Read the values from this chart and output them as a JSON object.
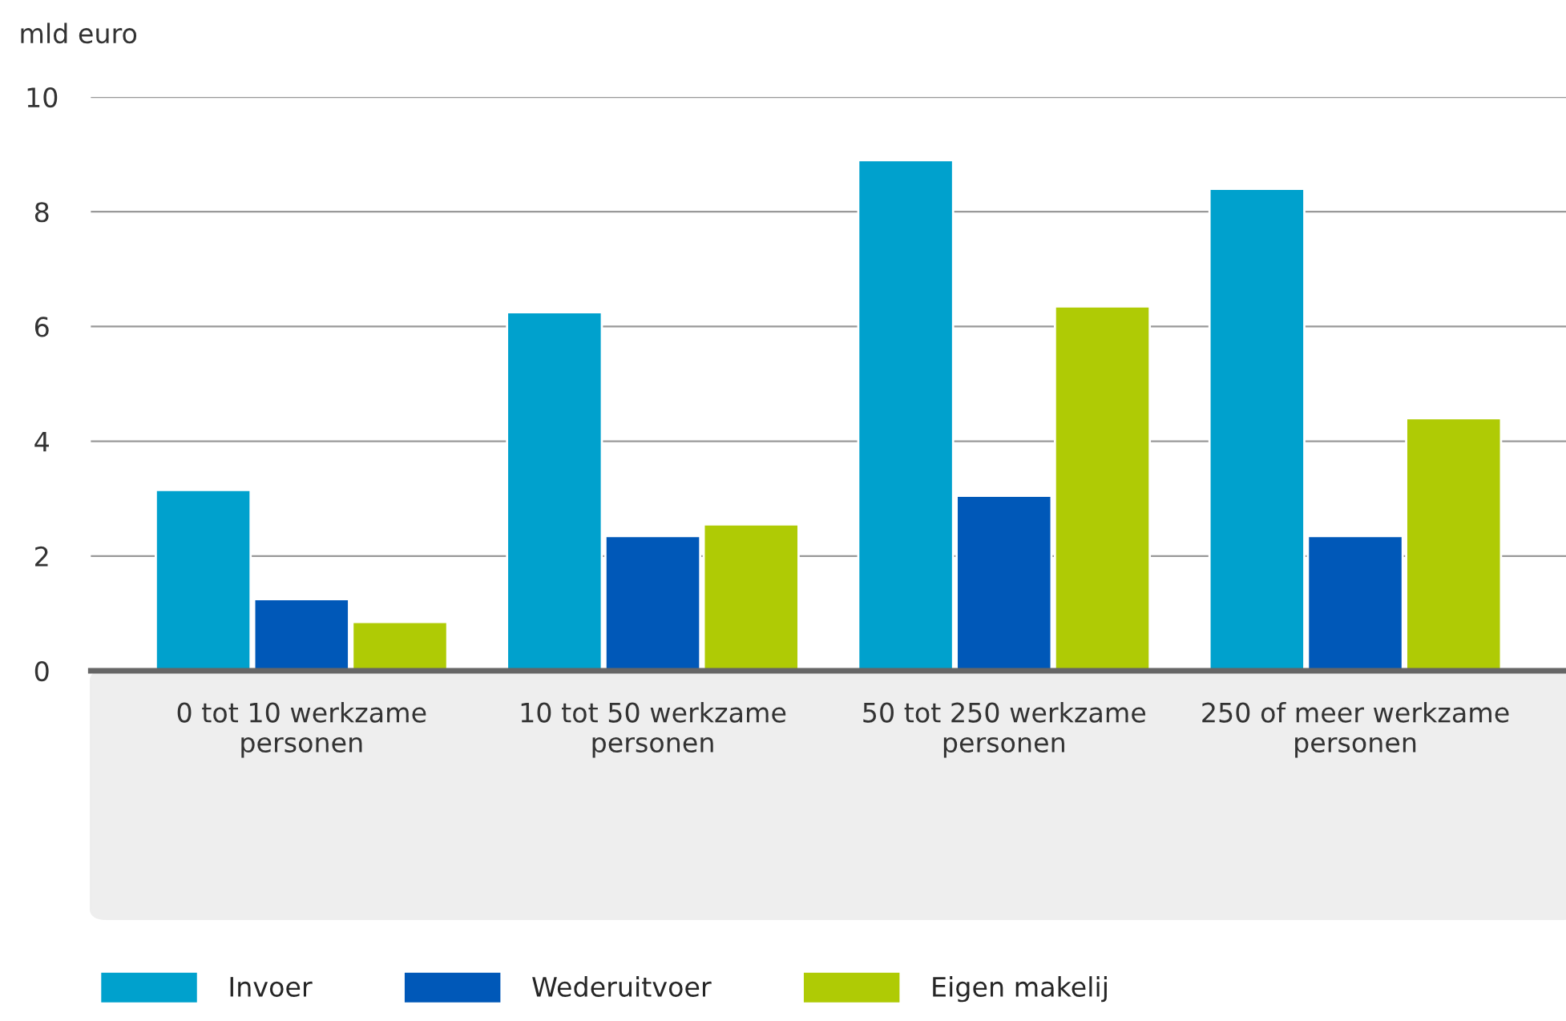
{
  "chart_data": {
    "type": "bar",
    "ylabel": "mld euro",
    "categories": [
      "0 tot 10 werkzame personen",
      "10 tot 50 werkzame personen",
      "50 tot 250 werkzame personen",
      "250 of meer werkzame personen"
    ],
    "series": [
      {
        "name": "Invoer",
        "color": "#00a1cd",
        "values": [
          3.15,
          6.25,
          8.9,
          8.4
        ]
      },
      {
        "name": "Wederuitvoer",
        "color": "#0058b8",
        "values": [
          1.25,
          2.35,
          3.05,
          2.35
        ]
      },
      {
        "name": "Eigen makelij",
        "color": "#afcb05",
        "values": [
          0.85,
          2.55,
          6.35,
          4.4
        ]
      }
    ],
    "ylim": [
      0,
      10
    ],
    "yticks": [
      0,
      2,
      4,
      6,
      8,
      10
    ],
    "grid": "y",
    "legend": "bottom"
  }
}
